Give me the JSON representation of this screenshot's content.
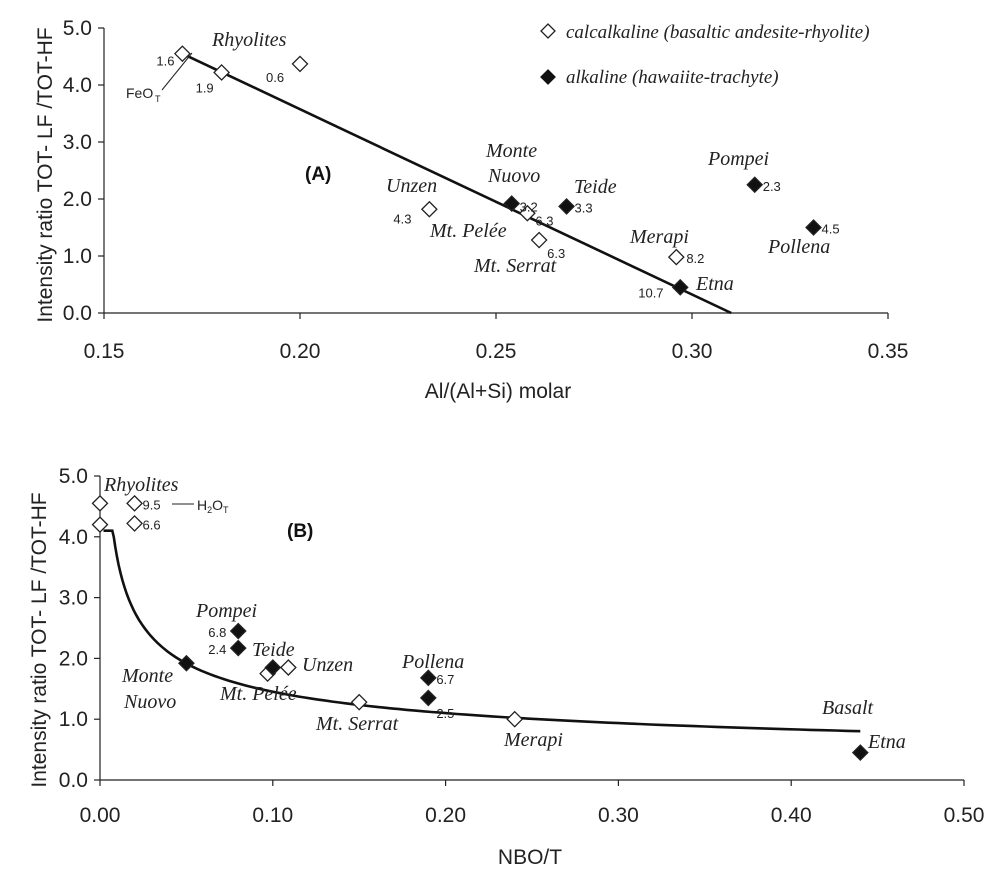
{
  "chart_data": [
    {
      "type": "scatter",
      "panel_label": "(A)",
      "xlabel": "Al/(Al+Si) molar",
      "ylabel": "Intensity ratio   TOT- LF /TOT-HF",
      "xlim": [
        0.15,
        0.35
      ],
      "ylim": [
        0.0,
        5.0
      ],
      "x_ticks": [
        "0.15",
        "0.20",
        "0.25",
        "0.30",
        "0.35"
      ],
      "y_ticks": [
        "0.0",
        "1.0",
        "2.0",
        "3.0",
        "4.0",
        "5.0"
      ],
      "legend": [
        {
          "marker": "open-diamond",
          "label": "calcalkaline (basaltic andesite-rhyolite)"
        },
        {
          "marker": "filled-diamond",
          "label": "alkaline (hawaiite-trachyte)"
        }
      ],
      "legend_position": "top-right",
      "series": [
        {
          "group": "calcalkaline",
          "marker": "open-diamond",
          "points": [
            {
              "x": 0.17,
              "y": 4.55,
              "value": "1.6"
            },
            {
              "x": 0.18,
              "y": 4.22,
              "value": "1.9"
            },
            {
              "x": 0.2,
              "y": 4.37,
              "value": "0.6"
            },
            {
              "x": 0.233,
              "y": 1.82,
              "value": "4.3"
            },
            {
              "x": 0.258,
              "y": 1.75,
              "value": "6.3"
            },
            {
              "x": 0.261,
              "y": 1.28,
              "value": "6.3"
            },
            {
              "x": 0.296,
              "y": 0.98,
              "value": "8.2"
            }
          ]
        },
        {
          "group": "alkaline",
          "marker": "filled-diamond",
          "points": [
            {
              "x": 0.254,
              "y": 1.92,
              "value": "3.2"
            },
            {
              "x": 0.268,
              "y": 1.87,
              "value": "3.3"
            },
            {
              "x": 0.316,
              "y": 2.25,
              "value": "2.3"
            },
            {
              "x": 0.331,
              "y": 1.5,
              "value": "4.5"
            },
            {
              "x": 0.297,
              "y": 0.45,
              "value": "10.7"
            }
          ]
        }
      ],
      "fit_line": [
        [
          0.17,
          4.55
        ],
        [
          0.31,
          0.0
        ]
      ],
      "annotations": {
        "rhyolites": "Rhyolites",
        "feo": "FeO",
        "feo_sub": "T",
        "monte_1": "Monte",
        "monte_2": "Nuovo",
        "teide": "Teide",
        "pompei": "Pompei",
        "unzen": "Unzen",
        "pelee": "Mt. Pelée",
        "serrat": "Mt. Serrat",
        "merapi": "Merapi",
        "pollena": "Pollena",
        "etna": "Etna"
      }
    },
    {
      "type": "scatter",
      "panel_label": "(B)",
      "xlabel": "NBO/T",
      "ylabel": "Intensity ratio   TOT- LF /TOT-HF",
      "xlim": [
        0.0,
        0.5
      ],
      "ylim": [
        0.0,
        5.0
      ],
      "x_ticks": [
        "0.00",
        "0.10",
        "0.20",
        "0.30",
        "0.40",
        "0.50"
      ],
      "y_ticks": [
        "0.0",
        "1.0",
        "2.0",
        "3.0",
        "4.0",
        "5.0"
      ],
      "series": [
        {
          "group": "calcalkaline",
          "marker": "open-diamond",
          "points": [
            {
              "x": 0.0,
              "y": 4.55,
              "value": ""
            },
            {
              "x": 0.0,
              "y": 4.2,
              "value": ""
            },
            {
              "x": 0.02,
              "y": 4.55,
              "value": "9.5"
            },
            {
              "x": 0.02,
              "y": 4.22,
              "value": "6.6"
            },
            {
              "x": 0.097,
              "y": 1.75,
              "value": ""
            },
            {
              "x": 0.109,
              "y": 1.85,
              "value": ""
            },
            {
              "x": 0.15,
              "y": 1.28,
              "value": ""
            },
            {
              "x": 0.24,
              "y": 1.0,
              "value": ""
            }
          ]
        },
        {
          "group": "alkaline",
          "marker": "filled-diamond",
          "points": [
            {
              "x": 0.05,
              "y": 1.92,
              "value": ""
            },
            {
              "x": 0.08,
              "y": 2.45,
              "value": "6.8"
            },
            {
              "x": 0.08,
              "y": 2.17,
              "value": "2.4"
            },
            {
              "x": 0.1,
              "y": 1.85,
              "value": ""
            },
            {
              "x": 0.19,
              "y": 1.68,
              "value": "6.7"
            },
            {
              "x": 0.19,
              "y": 1.35,
              "value": "2.5"
            },
            {
              "x": 0.44,
              "y": 0.45,
              "value": ""
            }
          ]
        }
      ],
      "fit_curve": "power",
      "fit_curve_xrange": [
        0.002,
        0.44
      ],
      "annotations": {
        "rhyolites": "Rhyolites",
        "h2o": "H",
        "h2o_mid": "2",
        "h2o_end": "O",
        "h2o_sub": "T",
        "pompei": "Pompei",
        "teide": "Teide",
        "unzen": "Unzen",
        "monte_1": "Monte",
        "monte_2": "Nuovo",
        "pelee": "Mt. Pelée",
        "serrat": "Mt. Serrat",
        "pollena": "Pollena",
        "merapi": "Merapi",
        "basalt": "Basalt",
        "etna": "Etna"
      }
    }
  ]
}
